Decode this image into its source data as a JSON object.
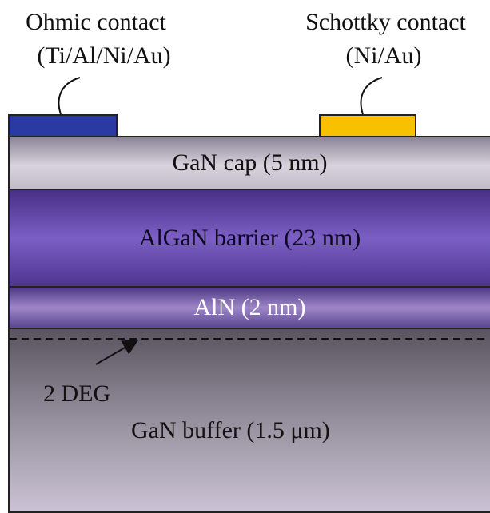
{
  "contacts": {
    "ohmic": {
      "title": "Ohmic contact",
      "material": "(Ti/Al/Ni/Au)",
      "color": "#2b3aa2"
    },
    "schottky": {
      "title": "Schottky contact",
      "material": "(Ni/Au)",
      "color": "#f8c100"
    }
  },
  "layers": {
    "cap": "GaN cap (5 nm)",
    "barrier": "AlGaN barrier (23 nm)",
    "aln": "AlN (2 nm)",
    "buffer": "GaN buffer (1.5 μm)"
  },
  "channel": {
    "label": "2 DEG"
  }
}
